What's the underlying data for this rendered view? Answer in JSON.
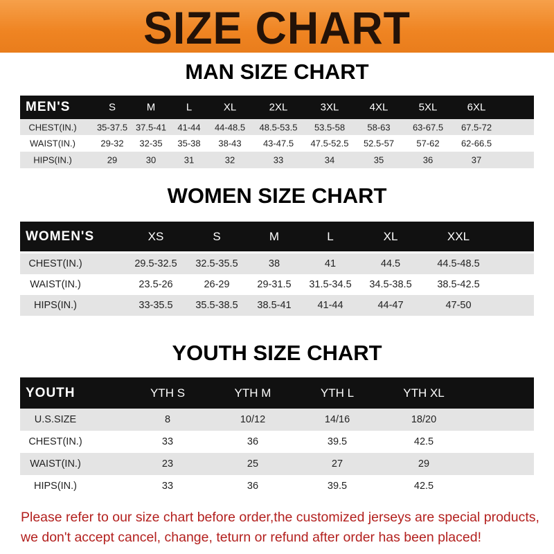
{
  "title": "SIZE CHART",
  "colors": {
    "banner": "#ef8422",
    "header_row": "#111111",
    "stripe": "#e4e4e4",
    "note": "#b3201e"
  },
  "men": {
    "title": "MAN SIZE CHART",
    "header": [
      "MEN'S",
      "S",
      "M",
      "L",
      "XL",
      "2XL",
      "3XL",
      "4XL",
      "5XL",
      "6XL"
    ],
    "rows": [
      [
        "CHEST(IN.)",
        "35-37.5",
        "37.5-41",
        "41-44",
        "44-48.5",
        "48.5-53.5",
        "53.5-58",
        "58-63",
        "63-67.5",
        "67.5-72"
      ],
      [
        "WAIST(IN.)",
        "29-32",
        "32-35",
        "35-38",
        "38-43",
        "43-47.5",
        "47.5-52.5",
        "52.5-57",
        "57-62",
        "62-66.5"
      ],
      [
        "HIPS(IN.)",
        "29",
        "30",
        "31",
        "32",
        "33",
        "34",
        "35",
        "36",
        "37"
      ]
    ]
  },
  "women": {
    "title": "WOMEN SIZE CHART",
    "header": [
      "WOMEN'S",
      "XS",
      "S",
      "M",
      "L",
      "XL",
      "XXL"
    ],
    "rows": [
      [
        "CHEST(IN.)",
        "29.5-32.5",
        "32.5-35.5",
        "38",
        "41",
        "44.5",
        "44.5-48.5"
      ],
      [
        "WAIST(IN.)",
        "23.5-26",
        "26-29",
        "29-31.5",
        "31.5-34.5",
        "34.5-38.5",
        "38.5-42.5"
      ],
      [
        "HIPS(IN.)",
        "33-35.5",
        "35.5-38.5",
        "38.5-41",
        "41-44",
        "44-47",
        "47-50"
      ]
    ]
  },
  "youth": {
    "title": "YOUTH SIZE CHART",
    "header": [
      "YOUTH",
      "YTH S",
      "YTH M",
      "YTH L",
      "YTH XL"
    ],
    "rows": [
      [
        "U.S.SIZE",
        "8",
        "10/12",
        "14/16",
        "18/20"
      ],
      [
        "CHEST(IN.)",
        "33",
        "36",
        "39.5",
        "42.5"
      ],
      [
        "WAIST(IN.)",
        "23",
        "25",
        "27",
        "29"
      ],
      [
        "HIPS(IN.)",
        "33",
        "36",
        "39.5",
        "42.5"
      ]
    ]
  },
  "note": {
    "line1": "Please refer to our size chart before order,the customized jerseys are special products,",
    "line2": "we don't accept cancel, change, teturn or refund after order has been placed!"
  }
}
